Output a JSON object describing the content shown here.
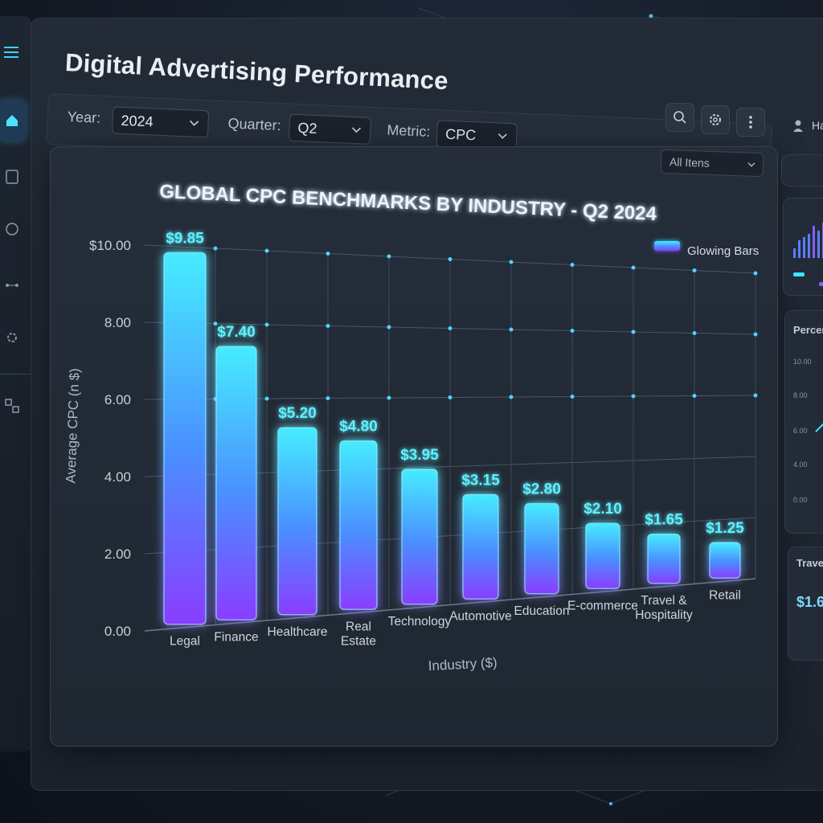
{
  "app": {
    "title": "Digital Advertising Performance"
  },
  "filters": {
    "year_label": "Year:",
    "year_value": "2024",
    "quarter_label": "Quarter:",
    "quarter_value": "Q2",
    "metric_label": "Metric:",
    "metric_value": "CPC",
    "items_value": "All Itens"
  },
  "user": {
    "name": "Har"
  },
  "colors": {
    "accent_cyan": "#3ee6ff",
    "accent_purple": "#8b3dff",
    "background": "#141b26"
  },
  "icons": {
    "sidebar": [
      "menu-icon",
      "home-icon",
      "document-icon",
      "circle-icon",
      "share-icon",
      "settings-icon",
      "network-icon"
    ],
    "toolbar": [
      "search-icon",
      "gear-icon",
      "more-vertical-icon"
    ]
  },
  "chart_data": {
    "type": "bar",
    "title": "GLOBAL CPC BENCHMARKS BY INDUSTRY - Q2 2024",
    "xlabel": "Industry ($)",
    "ylabel": "Average CPC (n $)",
    "ylim": [
      0,
      10
    ],
    "yticks": [
      "0.00",
      "2.00",
      "4.00",
      "6.00",
      "8.00",
      "$10.00"
    ],
    "categories": [
      "Legal",
      "Finance",
      "Healthcare",
      "Real Estate",
      "Technology",
      "Automotive",
      "Education",
      "E-commerce",
      "Travel & Hospitality",
      "Retail"
    ],
    "values": [
      9.85,
      7.4,
      5.2,
      4.8,
      3.95,
      3.15,
      2.8,
      2.1,
      1.65,
      1.25
    ],
    "data_labels": [
      "$9.85",
      "$7.40",
      "$5.20",
      "$4.80",
      "$3.95",
      "$3.15",
      "$2.80",
      "$2.10",
      "$1.65",
      "$1.25"
    ],
    "legend": [
      "Glowing Bars"
    ],
    "legend_position": "top-right",
    "grid": true
  },
  "right_panel": {
    "percent_label": "Percen",
    "percent_ticks": [
      "10.00",
      "8.00",
      "6.00",
      "4.00",
      "0.00"
    ],
    "travel_label": "Travel",
    "travel_value": "$1.6"
  }
}
